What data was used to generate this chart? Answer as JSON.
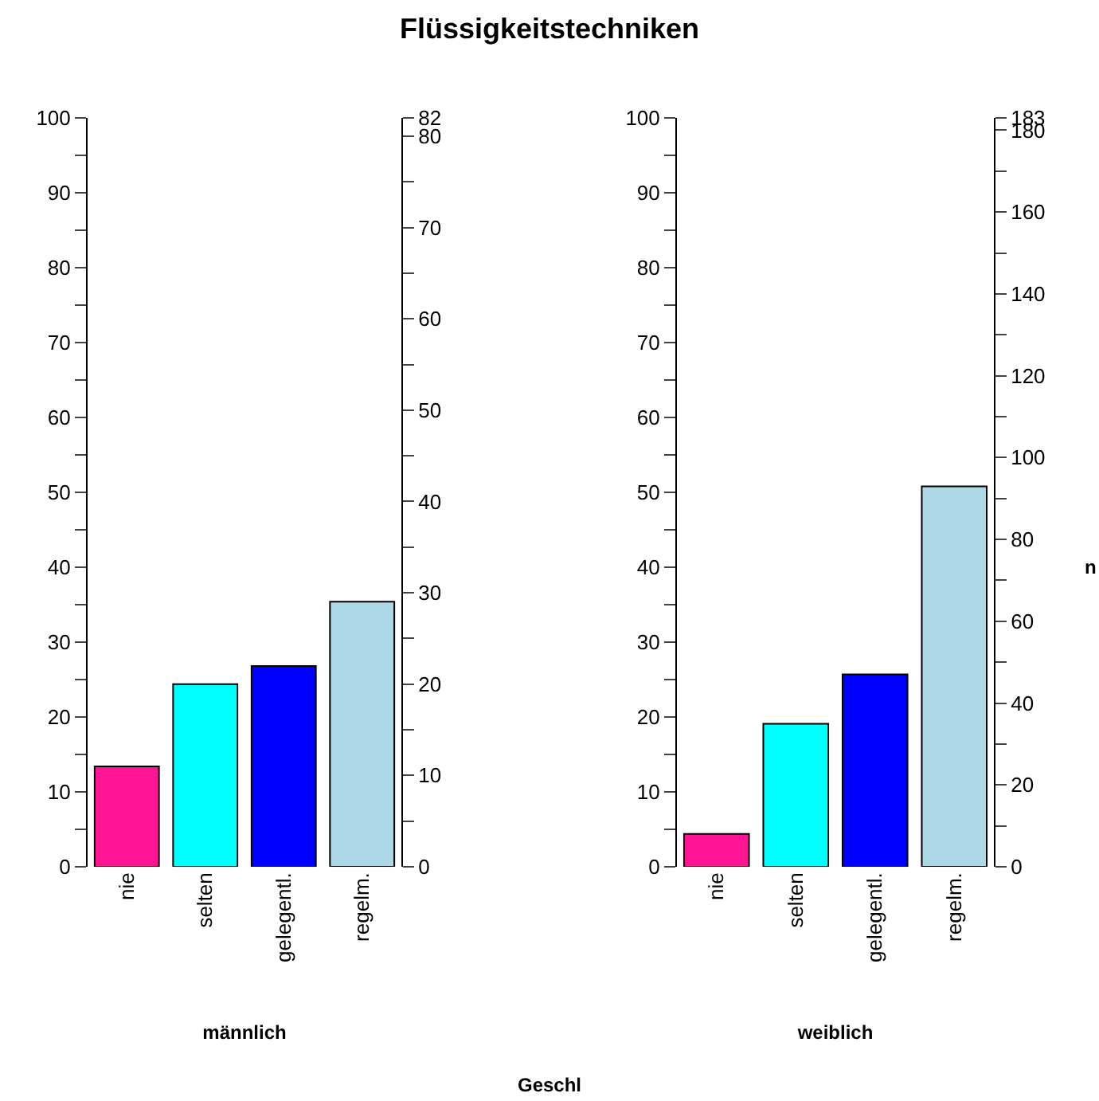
{
  "chart_data": [
    {
      "type": "bar",
      "title": "Flüssigkeitstechniken",
      "xlabel": "männlich",
      "annotations": [
        "Geschl"
      ],
      "categories": [
        "nie",
        "selten",
        "gelegentl.",
        "regelm."
      ],
      "values": [
        13.4,
        24.4,
        26.8,
        35.4
      ],
      "colors": [
        "#ff1493",
        "#00ffff",
        "#0000ff",
        "#add8e6"
      ],
      "ylim": [
        0,
        100
      ],
      "yticks": [
        0,
        {
          "value": 5,
          "label": null
        },
        10,
        {
          "value": 15,
          "label": null
        },
        20,
        {
          "value": 25,
          "label": null
        },
        30,
        {
          "value": 35,
          "label": null
        },
        40,
        {
          "value": 45,
          "label": null
        },
        50,
        {
          "value": 55,
          "label": null
        },
        60,
        {
          "value": 65,
          "label": null
        },
        70,
        {
          "value": 75,
          "label": null
        },
        80,
        {
          "value": 85,
          "label": null
        },
        90,
        {
          "value": 95,
          "label": null
        },
        100
      ],
      "y2lim": [
        0,
        82
      ],
      "y2ticks": [
        0,
        {
          "value": 5,
          "label": null
        },
        10,
        {
          "value": 15,
          "label": null
        },
        20,
        {
          "value": 25,
          "label": null
        },
        30,
        {
          "value": 35,
          "label": null
        },
        40,
        {
          "value": 45,
          "label": null
        },
        50,
        {
          "value": 55,
          "label": null
        },
        60,
        {
          "value": 65,
          "label": null
        },
        70,
        {
          "value": 75,
          "label": null
        },
        80,
        82
      ],
      "grid": false,
      "legend": false
    },
    {
      "type": "bar",
      "xlabel": "weiblich",
      "y2label": "n",
      "categories": [
        "nie",
        "selten",
        "gelegentl.",
        "regelm."
      ],
      "values": [
        4.4,
        19.1,
        25.7,
        50.8
      ],
      "colors": [
        "#ff1493",
        "#00ffff",
        "#0000ff",
        "#add8e6"
      ],
      "ylim": [
        0,
        100
      ],
      "yticks": [
        0,
        {
          "value": 5,
          "label": null
        },
        10,
        {
          "value": 15,
          "label": null
        },
        20,
        {
          "value": 25,
          "label": null
        },
        30,
        {
          "value": 35,
          "label": null
        },
        40,
        {
          "value": 45,
          "label": null
        },
        50,
        {
          "value": 55,
          "label": null
        },
        60,
        {
          "value": 65,
          "label": null
        },
        70,
        {
          "value": 75,
          "label": null
        },
        80,
        {
          "value": 85,
          "label": null
        },
        90,
        {
          "value": 95,
          "label": null
        },
        100
      ],
      "y2lim": [
        0,
        183
      ],
      "y2ticks": [
        0,
        {
          "value": 10,
          "label": null
        },
        20,
        {
          "value": 30,
          "label": null
        },
        40,
        {
          "value": 50,
          "label": null
        },
        60,
        {
          "value": 70,
          "label": null
        },
        80,
        {
          "value": 90,
          "label": null
        },
        100,
        {
          "value": 110,
          "label": null
        },
        120,
        {
          "value": 130,
          "label": null
        },
        140,
        {
          "value": 150,
          "label": null
        },
        160,
        {
          "value": 170,
          "label": null
        },
        180,
        183
      ],
      "grid": false,
      "legend": false
    }
  ]
}
